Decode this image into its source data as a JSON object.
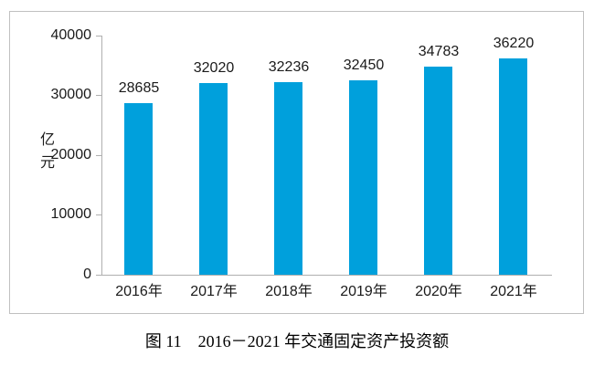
{
  "figure": {
    "caption": "图 11　2016－2021 年交通固定资产投资额"
  },
  "chart_data": {
    "type": "bar",
    "title": "",
    "xlabel": "",
    "ylabel": "亿元",
    "categories": [
      "2016年",
      "2017年",
      "2018年",
      "2019年",
      "2020年",
      "2021年"
    ],
    "values": [
      28685,
      32020,
      32236,
      32450,
      34783,
      36220
    ],
    "ylim": [
      0,
      40000
    ],
    "yticks": [
      0,
      10000,
      20000,
      30000,
      40000
    ],
    "grid": false,
    "legend_position": "none",
    "data_labels_shown": true,
    "colors": {
      "bar_fill": "#00a0dc",
      "axis_line": "#afafaf",
      "frame_border": "#c0c0c0",
      "text": "#1a1a1a"
    }
  }
}
